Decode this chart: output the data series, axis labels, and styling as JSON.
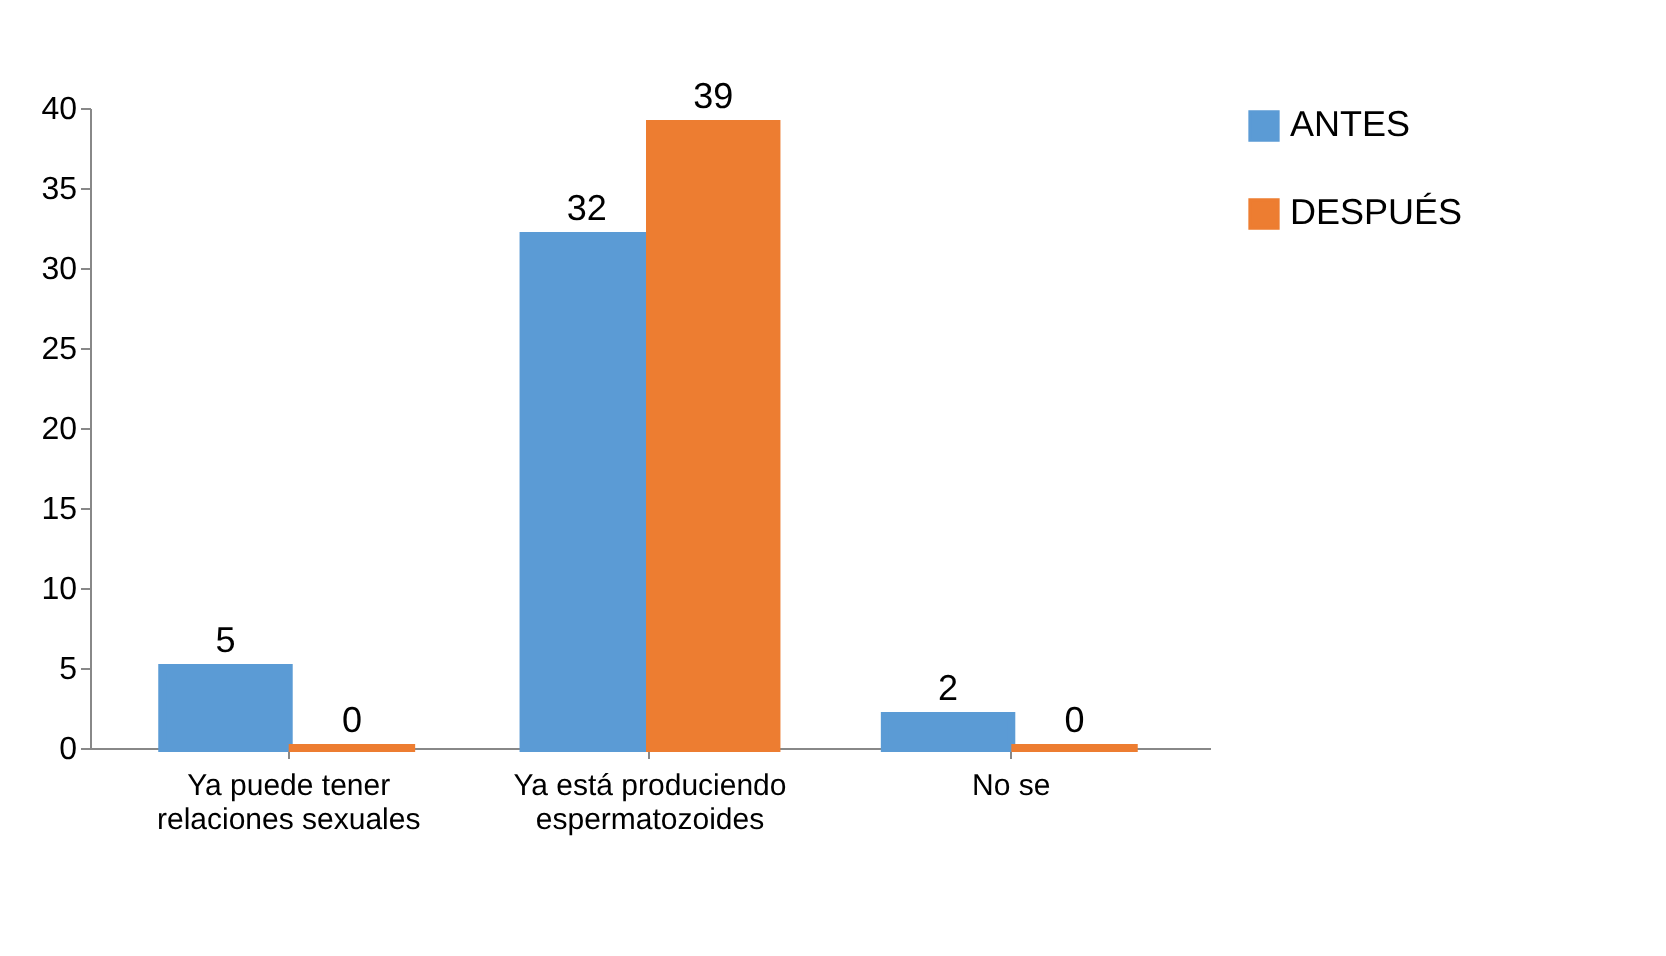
{
  "chart_data": {
    "type": "bar",
    "categories": [
      "Ya puede tener relaciones sexuales",
      "Ya está produciendo espermatozoides",
      "No se"
    ],
    "series": [
      {
        "name": "ANTES",
        "color": "#5b9bd5",
        "values": [
          5,
          32,
          2
        ]
      },
      {
        "name": "DESPUÉS",
        "color": "#ed7d31",
        "values": [
          0,
          39,
          0
        ]
      }
    ],
    "ylim": [
      0,
      40
    ],
    "yticks": [
      0,
      5,
      10,
      15,
      20,
      25,
      30,
      35,
      40
    ],
    "data_labels": true,
    "legend": "right",
    "grid": false
  }
}
